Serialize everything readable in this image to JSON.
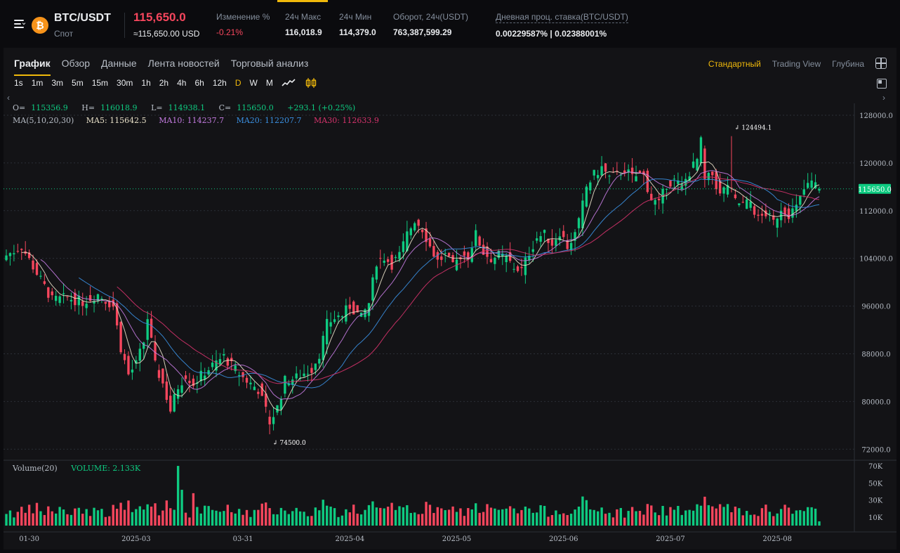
{
  "header": {
    "pair": "BTC/USDT",
    "pair_type": "Спот",
    "coin_symbol": "₿",
    "last_price": "115,650.0",
    "usd_price": "≈115,650.00 USD",
    "change_label": "Изменение %",
    "change_value": "-0.21%",
    "high_label": "24ч Макс",
    "high_value": "116,018.9",
    "low_label": "24ч Мин",
    "low_value": "114,379.0",
    "turnover_label": "Оборот, 24ч(USDT)",
    "turnover_value": "763,387,599.29",
    "rate_label": "Дневная проц. ставка(BTC/USDT)",
    "rate_value": "0.00229587% | 0.02388001%"
  },
  "tabs": [
    "График",
    "Обзор",
    "Данные",
    "Лента новостей",
    "Торговый анализ"
  ],
  "view_modes": [
    "Стандартный",
    "Trading View",
    "Глубина"
  ],
  "intervals": [
    "1s",
    "1m",
    "3m",
    "5m",
    "15m",
    "30m",
    "1h",
    "2h",
    "4h",
    "6h",
    "12h",
    "D",
    "W",
    "M"
  ],
  "active_interval": "D",
  "ohlc": {
    "o_label": "O=",
    "o": "115356.9",
    "h_label": "H=",
    "h": "116018.9",
    "l_label": "L=",
    "l": "114938.1",
    "c_label": "C=",
    "c": "115650.0",
    "change": "+293.1 (+0.25%)"
  },
  "ma_legend": {
    "title": "MA(5,10,20,30)",
    "ma5": "MA5: 115642.5",
    "ma10": "MA10: 114237.7",
    "ma20": "MA20: 112207.7",
    "ma30": "MA30: 112633.9"
  },
  "volume_legend": {
    "title": "Volume(20)",
    "value": "VOLUME: 2.133K"
  },
  "colors": {
    "up": "#0ecb81",
    "down": "#f6465d",
    "accent": "#f0b90b",
    "ma5": "#e8e0c8",
    "ma10": "#c47be0",
    "ma20": "#3a8fe0",
    "ma30": "#d6336c"
  },
  "chart_data": {
    "type": "candlestick",
    "symbol": "BTC/USDT",
    "interval": "D",
    "y_ticks": [
      "128000.0",
      "120000.0",
      "112000.0",
      "104000.0",
      "96000.0",
      "88000.0",
      "80000.0",
      "72000.0"
    ],
    "ylim": [
      70500,
      130000
    ],
    "current_price_label": "115650.0",
    "annotations": [
      {
        "text": "124494.1",
        "date_index": 190,
        "value": 124494.1,
        "kind": "high"
      },
      {
        "text": "74500.0",
        "date_index": 69,
        "value": 74500.0,
        "kind": "low"
      }
    ],
    "x_ticks": [
      {
        "label": "01-30",
        "index": 6
      },
      {
        "label": "2025-03",
        "index": 34
      },
      {
        "label": "03-31",
        "index": 62
      },
      {
        "label": "2025-04",
        "index": 90
      },
      {
        "label": "2025-05",
        "index": 118
      },
      {
        "label": "2025-06",
        "index": 146
      },
      {
        "label": "2025-07",
        "index": 174
      },
      {
        "label": "2025-08",
        "index": 202
      }
    ],
    "volume_ticks": [
      "70K",
      "50K",
      "30K",
      "10K"
    ],
    "volume_ylim": [
      0,
      75
    ],
    "close_path": [
      [
        0,
        104500
      ],
      [
        4,
        106000
      ],
      [
        8,
        101500
      ],
      [
        12,
        97000
      ],
      [
        16,
        97400
      ],
      [
        20,
        96700
      ],
      [
        24,
        98000
      ],
      [
        28,
        96000
      ],
      [
        30,
        89000
      ],
      [
        32,
        84500
      ],
      [
        34,
        86200
      ],
      [
        36,
        90000
      ],
      [
        37,
        94000
      ],
      [
        39,
        86000
      ],
      [
        41,
        83000
      ],
      [
        43,
        78500
      ],
      [
        45,
        82500
      ],
      [
        47,
        84500
      ],
      [
        49,
        83000
      ],
      [
        52,
        85000
      ],
      [
        55,
        86500
      ],
      [
        57,
        87500
      ],
      [
        59,
        86000
      ],
      [
        62,
        84000
      ],
      [
        64,
        83000
      ],
      [
        66,
        82000
      ],
      [
        68,
        78500
      ],
      [
        69,
        76500
      ],
      [
        71,
        79000
      ],
      [
        73,
        83500
      ],
      [
        76,
        84000
      ],
      [
        80,
        85500
      ],
      [
        82,
        88000
      ],
      [
        84,
        93000
      ],
      [
        86,
        94000
      ],
      [
        88,
        94500
      ],
      [
        90,
        96000
      ],
      [
        93,
        94000
      ],
      [
        95,
        96500
      ],
      [
        97,
        103500
      ],
      [
        99,
        104200
      ],
      [
        101,
        103000
      ],
      [
        103,
        104500
      ],
      [
        105,
        108000
      ],
      [
        107,
        110500
      ],
      [
        109,
        109000
      ],
      [
        111,
        106000
      ],
      [
        113,
        103500
      ],
      [
        115,
        104500
      ],
      [
        117,
        102500
      ],
      [
        119,
        104500
      ],
      [
        121,
        104500
      ],
      [
        123,
        108000
      ],
      [
        125,
        105000
      ],
      [
        127,
        104000
      ],
      [
        129,
        104500
      ],
      [
        131,
        104000
      ],
      [
        133,
        102500
      ],
      [
        135,
        102000
      ],
      [
        137,
        105000
      ],
      [
        139,
        107500
      ],
      [
        141,
        108000
      ],
      [
        143,
        106500
      ],
      [
        145,
        108500
      ],
      [
        147,
        106000
      ],
      [
        149,
        108000
      ],
      [
        150,
        110000
      ],
      [
        152,
        116000
      ],
      [
        154,
        118000
      ],
      [
        156,
        119200
      ],
      [
        158,
        117500
      ],
      [
        160,
        118000
      ],
      [
        162,
        119000
      ],
      [
        164,
        117500
      ],
      [
        166,
        118000
      ],
      [
        167,
        117800
      ],
      [
        169,
        114000
      ],
      [
        171,
        113000
      ],
      [
        173,
        116500
      ],
      [
        175,
        117000
      ],
      [
        177,
        116000
      ],
      [
        179,
        118500
      ],
      [
        181,
        120500
      ],
      [
        182,
        123500
      ],
      [
        183,
        117000
      ],
      [
        185,
        118000
      ],
      [
        187,
        114500
      ],
      [
        189,
        116500
      ],
      [
        191,
        113500
      ],
      [
        193,
        113000
      ],
      [
        195,
        113500
      ],
      [
        197,
        110500
      ],
      [
        199,
        111500
      ],
      [
        201,
        110000
      ],
      [
        203,
        112500
      ],
      [
        205,
        111500
      ],
      [
        207,
        112500
      ],
      [
        209,
        115500
      ],
      [
        211,
        116800
      ],
      [
        213,
        115650
      ]
    ]
  }
}
